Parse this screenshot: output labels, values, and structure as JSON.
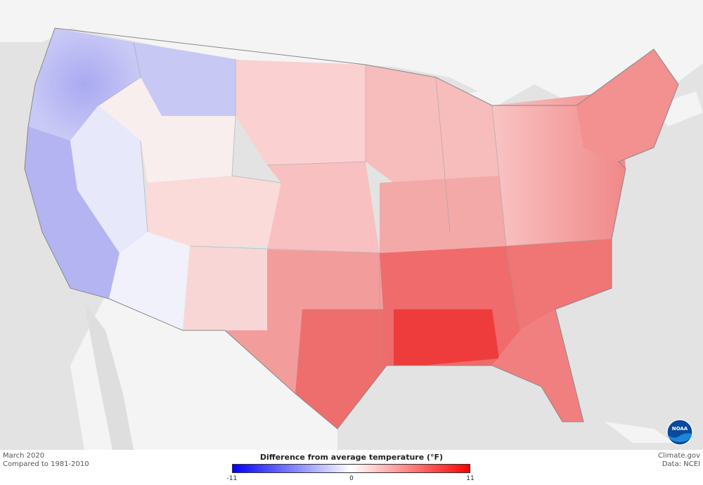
{
  "footer": {
    "left_line1": "March 2020",
    "left_line2": "Compared to 1981-2010",
    "right_line1": "Climate.gov",
    "right_line2": "Data: NCEI"
  },
  "legend": {
    "title": "Difference from average temperature (°F)",
    "min_label": "-11",
    "mid_label": "0",
    "max_label": "11",
    "colors": {
      "min": "#0000ff",
      "mid": "#ffffff",
      "max": "#ff0000"
    }
  },
  "map": {
    "land_color": "#f4f4f4",
    "water_color": "#e3e3e3",
    "logo": "noaa-logo"
  }
}
